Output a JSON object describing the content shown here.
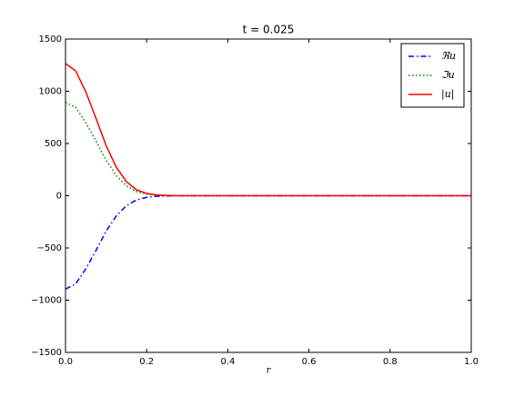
{
  "chart_data": {
    "type": "line",
    "title": "t = 0.025",
    "x_label": "r",
    "x": [
      0,
      0.025,
      0.05,
      0.075,
      0.1,
      0.125,
      0.15,
      0.175,
      0.2,
      0.225,
      0.25,
      0.275,
      0.3,
      0.325,
      0.35,
      0.375,
      0.4,
      0.425,
      0.45,
      0.475,
      0.5,
      0.525,
      0.55,
      0.575,
      0.6,
      0.625,
      0.65,
      0.675,
      0.7,
      0.725,
      0.75,
      0.775,
      0.8,
      0.825,
      0.85,
      0.875,
      0.9,
      0.925,
      0.95,
      0.975,
      1.0
    ],
    "series": [
      {
        "name": "ℜu",
        "color": "#0000ff",
        "dash": "dashdot",
        "values": [
          -894,
          -845,
          -700,
          -525,
          -340,
          -194,
          -95,
          -40,
          -15,
          -5,
          -2,
          0,
          0,
          0,
          0,
          0,
          0,
          0,
          0,
          0,
          0,
          0,
          0,
          0,
          0,
          0,
          0,
          0,
          0,
          0,
          0,
          0,
          0,
          0,
          0,
          0,
          0,
          0,
          0,
          0,
          0
        ]
      },
      {
        "name": "ℑu",
        "color": "#008000",
        "dash": "dotted",
        "values": [
          894,
          845,
          700,
          525,
          340,
          194,
          95,
          40,
          15,
          5,
          2,
          0,
          0,
          0,
          0,
          0,
          0,
          0,
          0,
          0,
          0,
          0,
          0,
          0,
          0,
          0,
          0,
          0,
          0,
          0,
          0,
          0,
          0,
          0,
          0,
          0,
          0,
          0,
          0,
          0,
          0
        ]
      },
      {
        "name": "|u|",
        "color": "#ff0000",
        "dash": "solid",
        "values": [
          1265,
          1196,
          995,
          743,
          482,
          274,
          135,
          57,
          22,
          8,
          3,
          0,
          0,
          0,
          0,
          0,
          0,
          0,
          0,
          0,
          0,
          0,
          0,
          0,
          0,
          0,
          0,
          0,
          0,
          0,
          0,
          0,
          0,
          0,
          0,
          0,
          0,
          0,
          0,
          0,
          0
        ]
      }
    ],
    "xlim": [
      0,
      1
    ],
    "ylim": [
      -1500,
      1500
    ],
    "xticks": [
      {
        "value": 0,
        "label": "0.0"
      },
      {
        "value": 0.2,
        "label": "0.2"
      },
      {
        "value": 0.4,
        "label": "0.4"
      },
      {
        "value": 0.6,
        "label": "0.6"
      },
      {
        "value": 0.8,
        "label": "0.8"
      },
      {
        "value": 1,
        "label": "1.0"
      }
    ],
    "yticks": [
      {
        "value": -1500,
        "label": "−1500"
      },
      {
        "value": -1000,
        "label": "−1000"
      },
      {
        "value": -500,
        "label": "−500"
      },
      0,
      500,
      1000,
      1500
    ],
    "legend": "upper right",
    "grid": false
  }
}
